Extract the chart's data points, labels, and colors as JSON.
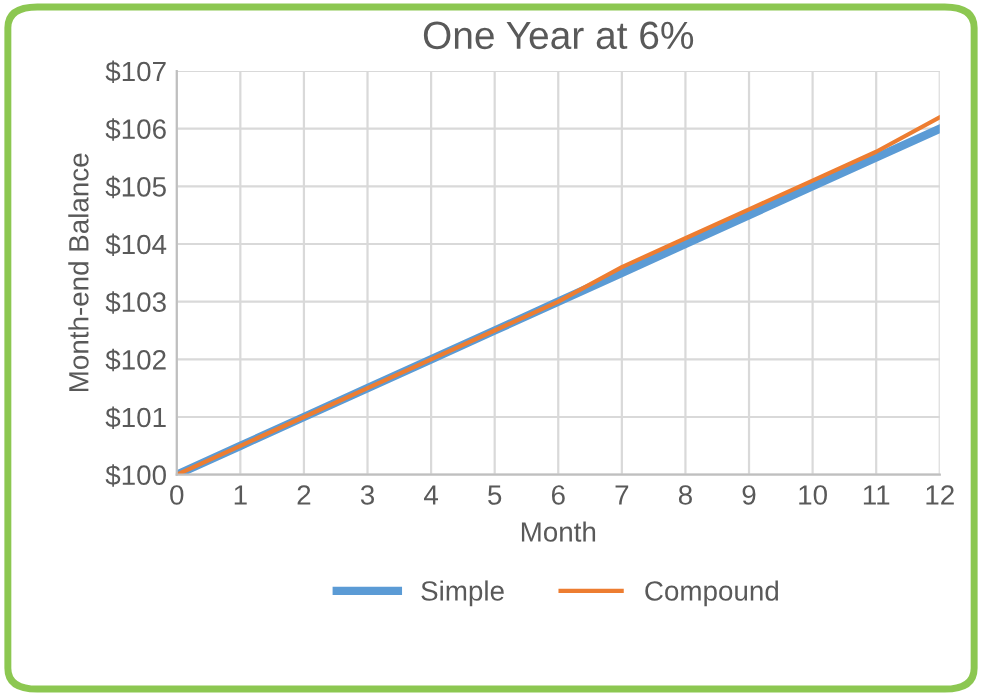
{
  "chart_data": {
    "type": "line",
    "title": "One Year at 6%",
    "xlabel": "Month",
    "ylabel": "Month-end Balance",
    "x": [
      0,
      1,
      2,
      3,
      4,
      5,
      6,
      7,
      8,
      9,
      10,
      11,
      12
    ],
    "series": [
      {
        "name": "Simple",
        "color": "#5b9bd5",
        "values": [
          100,
          100.5,
          101,
          101.5,
          102,
          102.5,
          103,
          103.5,
          104,
          104.5,
          105,
          105.5,
          106
        ]
      },
      {
        "name": "Compound",
        "color": "#ed7d31",
        "values": [
          100,
          100.5,
          101,
          101.5,
          102,
          102.5,
          103,
          103.6,
          104.1,
          104.6,
          105.1,
          105.6,
          106.2
        ]
      }
    ],
    "xlim": [
      0,
      12
    ],
    "xticks": [
      0,
      1,
      2,
      3,
      4,
      5,
      6,
      7,
      8,
      9,
      10,
      11,
      12
    ],
    "ylim": [
      100,
      107
    ],
    "yticks": [
      {
        "value": 100,
        "label": "$100"
      },
      {
        "value": 101,
        "label": "$101"
      },
      {
        "value": 102,
        "label": "$102"
      },
      {
        "value": 103,
        "label": "$103"
      },
      {
        "value": 104,
        "label": "$104"
      },
      {
        "value": 105,
        "label": "$105"
      },
      {
        "value": 106,
        "label": "$106"
      },
      {
        "value": 107,
        "label": "$107"
      }
    ],
    "grid": true,
    "legend": "bottom",
    "line_style": "solid"
  }
}
